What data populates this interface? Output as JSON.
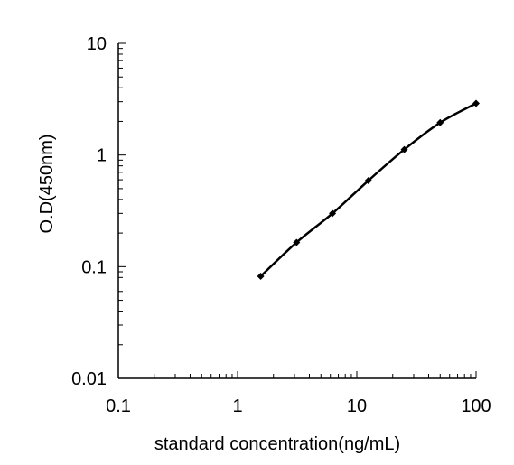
{
  "chart_data": {
    "type": "line",
    "title": "",
    "xlabel": "standard concentration(ng/mL)",
    "ylabel": "O.D(450nm)",
    "xscale": "log",
    "yscale": "log",
    "xlim": [
      0.1,
      100
    ],
    "ylim": [
      0.01,
      10
    ],
    "x_ticks": [
      "0.1",
      "1",
      "10",
      "100"
    ],
    "y_ticks": [
      "0.01",
      "0.1",
      "1",
      "10"
    ],
    "grid": false,
    "legend": "none",
    "series": [
      {
        "color": "#000000",
        "marker": "diamond",
        "x": [
          1.5625,
          3.125,
          6.25,
          12.5,
          25,
          50,
          100
        ],
        "y": [
          0.082,
          0.165,
          0.3,
          0.59,
          1.12,
          1.95,
          2.9
        ]
      }
    ]
  }
}
